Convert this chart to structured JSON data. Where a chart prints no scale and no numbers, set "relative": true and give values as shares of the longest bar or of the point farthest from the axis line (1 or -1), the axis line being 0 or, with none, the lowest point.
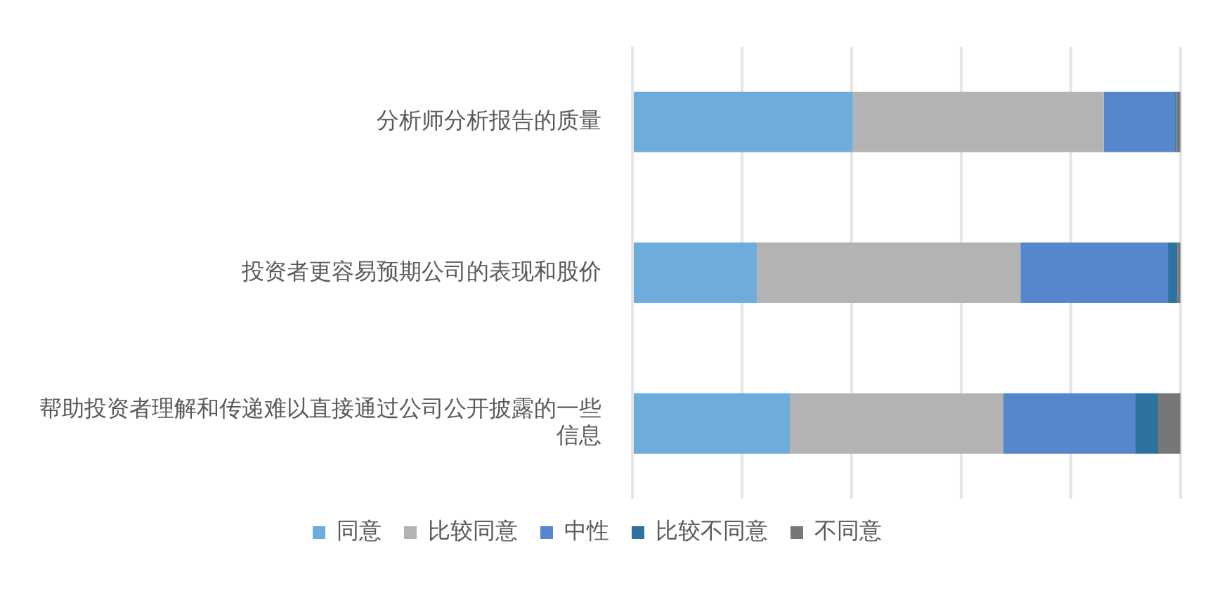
{
  "chart_data": {
    "type": "bar",
    "orientation": "horizontal",
    "stacked": true,
    "relative": true,
    "grid": "x",
    "legend": "bottom",
    "categories": [
      "分析师分析报告的质量",
      "投资者更容易预期公司的表现和股价",
      "帮助投资者理解和传递难以直接通过公司公开披露的一些信息"
    ],
    "series": [
      {
        "name": "同意",
        "color": "#6eacdc",
        "values": [
          0.402,
          0.227,
          0.288
        ]
      },
      {
        "name": "比较同意",
        "color": "#b3b3b3",
        "values": [
          0.458,
          0.481,
          0.389
        ]
      },
      {
        "name": "中性",
        "color": "#5687cd",
        "values": [
          0.13,
          0.269,
          0.241
        ]
      },
      {
        "name": "比较不同意",
        "color": "#2e72a0",
        "values": [
          0.003,
          0.017,
          0.041
        ]
      },
      {
        "name": "不同意",
        "color": "#777777",
        "values": [
          0.007,
          0.006,
          0.041
        ]
      }
    ]
  }
}
